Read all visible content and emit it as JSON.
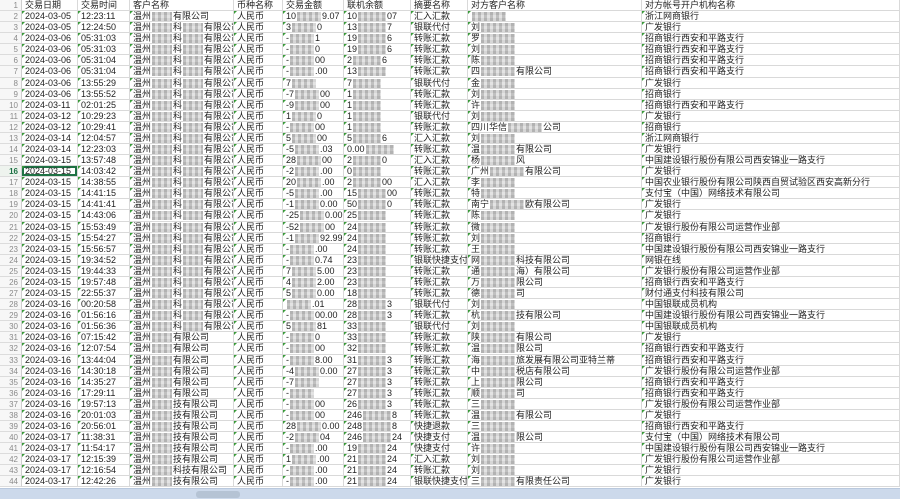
{
  "sheet": {
    "columns": [
      "交易日期",
      "交易时间",
      "客户名称",
      "币种名称",
      "交易金额",
      "联机余额",
      "摘要名称",
      "对方客户名称",
      "对方帐号开户机构名称"
    ],
    "currency": "人民币",
    "selected_row": 16,
    "redaction_note": "mosaic-redacted segments rendered as gray blocks",
    "rows": [
      {
        "n": 2,
        "date": "2024-03-05",
        "time": "12:23:11",
        "customer": [
          "温州",
          "有限公司"
        ],
        "currency": "人民币",
        "amount": [
          "10",
          "9.07"
        ],
        "balance": [
          "10",
          "07"
        ],
        "summary": "汇入汇款",
        "counterparty": [
          "",
          ""
        ],
        "institution": "浙江网商银行"
      },
      {
        "n": 3,
        "date": "2024-03-05",
        "time": "12:24:50",
        "customer": [
          "温州",
          "科",
          "有限公司"
        ],
        "currency": "人民币",
        "amount": [
          "3",
          "0"
        ],
        "balance": [
          "13",
          "7"
        ],
        "summary": "银联代付",
        "counterparty": [
          "刘",
          ""
        ],
        "institution": "广发银行"
      },
      {
        "n": 4,
        "date": "2024-03-06",
        "time": "05:31:03",
        "customer": [
          "温州",
          "科",
          "有限公司"
        ],
        "currency": "人民币",
        "amount": [
          "-",
          "1"
        ],
        "balance": [
          "19",
          "6"
        ],
        "summary": "转账汇款",
        "counterparty": [
          "罗",
          ""
        ],
        "institution": "招商银行西安和平路支行"
      },
      {
        "n": 5,
        "date": "2024-03-06",
        "time": "05:31:03",
        "customer": [
          "温州",
          "科",
          "有限公司"
        ],
        "currency": "人民币",
        "amount": [
          "-",
          "0"
        ],
        "balance": [
          "19",
          "6"
        ],
        "summary": "转账汇款",
        "counterparty": [
          "刘",
          ""
        ],
        "institution": "招商银行西安和平路支行"
      },
      {
        "n": 6,
        "date": "2024-03-06",
        "time": "05:31:04",
        "customer": [
          "温州",
          "科",
          "有限公司"
        ],
        "currency": "人民币",
        "amount": [
          "-",
          "00"
        ],
        "balance": [
          "2",
          "6"
        ],
        "summary": "转账汇款",
        "counterparty": [
          "陈",
          ""
        ],
        "institution": "招商银行西安和平路支行"
      },
      {
        "n": 7,
        "date": "2024-03-06",
        "time": "05:31:04",
        "customer": [
          "温州",
          "科",
          "有限公司"
        ],
        "currency": "人民币",
        "amount": [
          "-",
          ".00"
        ],
        "balance": [
          "13",
          ""
        ],
        "summary": "转账汇款",
        "counterparty": [
          "四",
          "有限公司"
        ],
        "institution": "招商银行西安和平路支行"
      },
      {
        "n": 8,
        "date": "2024-03-06",
        "time": "13:55:29",
        "customer": [
          "温州",
          "科",
          "有限公司"
        ],
        "currency": "人民币",
        "amount": [
          "7",
          ""
        ],
        "balance": [
          "7",
          ""
        ],
        "summary": "银联代付",
        "counterparty": [
          "金",
          ""
        ],
        "institution": "广发银行"
      },
      {
        "n": 9,
        "date": "2024-03-06",
        "time": "13:55:52",
        "customer": [
          "温州",
          "科",
          "有限公司"
        ],
        "currency": "人民币",
        "amount": [
          "-7",
          "00"
        ],
        "balance": [
          "1",
          ""
        ],
        "summary": "转账汇款",
        "counterparty": [
          "刘",
          ""
        ],
        "institution": "招商银行"
      },
      {
        "n": 10,
        "date": "2024-03-11",
        "time": "02:01:25",
        "customer": [
          "温州",
          "科",
          "有限公司"
        ],
        "currency": "人民币",
        "amount": [
          "-9",
          "00"
        ],
        "balance": [
          "1",
          ""
        ],
        "summary": "转账汇款",
        "counterparty": [
          "许",
          ""
        ],
        "institution": "招商银行西安和平路支行"
      },
      {
        "n": 11,
        "date": "2024-03-12",
        "time": "10:29:23",
        "customer": [
          "温州",
          "科",
          "有限公司"
        ],
        "currency": "人民币",
        "amount": [
          "1",
          "0"
        ],
        "balance": [
          "1",
          ""
        ],
        "summary": "银联代付",
        "counterparty": [
          "刘",
          ""
        ],
        "institution": "广发银行"
      },
      {
        "n": 12,
        "date": "2024-03-12",
        "time": "10:29:41",
        "customer": [
          "温州",
          "科",
          "有限公司"
        ],
        "currency": "人民币",
        "amount": [
          "-",
          "00"
        ],
        "balance": [
          "1",
          ""
        ],
        "summary": "转账汇款",
        "counterparty": [
          "四川华信",
          "公司"
        ],
        "institution": "招商银行"
      },
      {
        "n": 13,
        "date": "2024-03-14",
        "time": "12:04:57",
        "customer": [
          "温州",
          "科",
          "有限公司"
        ],
        "currency": "人民币",
        "amount": [
          "5",
          "00"
        ],
        "balance": [
          "5",
          "6"
        ],
        "summary": "汇入汇款",
        "counterparty": [
          "刘",
          ""
        ],
        "institution": "浙江网商银行"
      },
      {
        "n": 14,
        "date": "2024-03-14",
        "time": "12:23:03",
        "customer": [
          "温州",
          "科",
          "有限公司"
        ],
        "currency": "人民币",
        "amount": [
          "-5",
          ".03"
        ],
        "balance": [
          "0.00",
          ""
        ],
        "summary": "转账汇款",
        "counterparty": [
          "温",
          "有限公司"
        ],
        "institution": "广发银行"
      },
      {
        "n": 15,
        "date": "2024-03-15",
        "time": "13:57:48",
        "customer": [
          "温州",
          "科",
          "有限公司"
        ],
        "currency": "人民币",
        "amount": [
          "28",
          "00"
        ],
        "balance": [
          "2",
          "0"
        ],
        "summary": "汇入汇款",
        "counterparty": [
          "杨",
          "风"
        ],
        "institution": "中国建设银行股份有限公司西安锦业一路支行"
      },
      {
        "n": 16,
        "date": "2024-03-15",
        "time": "14:03:42",
        "customer": [
          "温州",
          "科",
          "有限公司"
        ],
        "currency": "人民币",
        "amount": [
          "-2",
          ".00"
        ],
        "balance": [
          "0",
          ""
        ],
        "summary": "转账汇款",
        "counterparty": [
          "广州",
          "有限公司"
        ],
        "institution": "广发银行"
      },
      {
        "n": 17,
        "date": "2024-03-15",
        "time": "14:38:55",
        "customer": [
          "温州",
          "科",
          "有限公司"
        ],
        "currency": "人民币",
        "amount": [
          "20",
          ".00"
        ],
        "balance": [
          "2",
          "00"
        ],
        "summary": "汇入汇款",
        "counterparty": [
          "李",
          ""
        ],
        "institution": "中国农业银行股份有限公司陕西自贸试验区西安高新分行"
      },
      {
        "n": 18,
        "date": "2024-03-15",
        "time": "14:41:15",
        "customer": [
          "温州",
          "科",
          "有限公司"
        ],
        "currency": "人民币",
        "amount": [
          "-5",
          ".00"
        ],
        "balance": [
          "15",
          "00"
        ],
        "summary": "转账汇款",
        "counterparty": [
          "特",
          ""
        ],
        "institution": "支付宝（中国）网络技术有限公司"
      },
      {
        "n": 19,
        "date": "2024-03-15",
        "time": "14:41:41",
        "customer": [
          "温州",
          "科",
          "有限公司"
        ],
        "currency": "人民币",
        "amount": [
          "-1",
          "0.00"
        ],
        "balance": [
          "50",
          "0"
        ],
        "summary": "转账汇款",
        "counterparty": [
          "南宁",
          "欧有限公司"
        ],
        "institution": "广发银行"
      },
      {
        "n": 20,
        "date": "2024-03-15",
        "time": "14:43:06",
        "customer": [
          "温州",
          "科",
          "有限公司"
        ],
        "currency": "人民币",
        "amount": [
          "-25",
          "0.00"
        ],
        "balance": [
          "25",
          ""
        ],
        "summary": "转账汇款",
        "counterparty": [
          "陈",
          ""
        ],
        "institution": "广发银行"
      },
      {
        "n": 21,
        "date": "2024-03-15",
        "time": "15:53:49",
        "customer": [
          "温州",
          "科",
          "有限公司"
        ],
        "currency": "人民币",
        "amount": [
          "-52",
          "00"
        ],
        "balance": [
          "24",
          ""
        ],
        "summary": "转账汇款",
        "counterparty": [
          "微",
          ""
        ],
        "institution": "广发银行股份有限公司运营作业部"
      },
      {
        "n": 22,
        "date": "2024-03-15",
        "time": "15:54:27",
        "customer": [
          "温州",
          "科",
          "有限公司"
        ],
        "currency": "人民币",
        "amount": [
          "-1",
          "92.99"
        ],
        "balance": [
          "24",
          ""
        ],
        "summary": "转账汇款",
        "counterparty": [
          "刘",
          ""
        ],
        "institution": "招商银行"
      },
      {
        "n": 23,
        "date": "2024-03-15",
        "time": "15:56:57",
        "customer": [
          "温州",
          "科",
          "有限公司"
        ],
        "currency": "人民币",
        "amount": [
          "-",
          ".00"
        ],
        "balance": [
          "24",
          ""
        ],
        "summary": "转账汇款",
        "counterparty": [
          "王",
          ""
        ],
        "institution": "中国建设银行股份有限公司西安锦业一路支行"
      },
      {
        "n": 24,
        "date": "2024-03-15",
        "time": "19:34:52",
        "customer": [
          "温州",
          "科",
          "有限公司"
        ],
        "currency": "人民币",
        "amount": [
          "-",
          "0.74"
        ],
        "balance": [
          "23",
          ""
        ],
        "summary": "银联快捷支付",
        "counterparty": [
          "网",
          "科技有限公司"
        ],
        "institution": "网银在线"
      },
      {
        "n": 25,
        "date": "2024-03-15",
        "time": "19:44:33",
        "customer": [
          "温州",
          "科",
          "有限公司"
        ],
        "currency": "人民币",
        "amount": [
          "7",
          "5.00"
        ],
        "balance": [
          "23",
          ""
        ],
        "summary": "转账汇款",
        "counterparty": [
          "通",
          "海）有限公司"
        ],
        "institution": "广发银行股份有限公司运营作业部"
      },
      {
        "n": 26,
        "date": "2024-03-15",
        "time": "19:57:48",
        "customer": [
          "温州",
          "科",
          "有限公司"
        ],
        "currency": "人民币",
        "amount": [
          "4",
          "2.00"
        ],
        "balance": [
          "23",
          ""
        ],
        "summary": "转账汇款",
        "counterparty": [
          "万",
          "限公司"
        ],
        "institution": "招商银行西安和平路支行"
      },
      {
        "n": 27,
        "date": "2024-03-15",
        "time": "22:55:37",
        "customer": [
          "温州",
          "科",
          "有限公司"
        ],
        "currency": "人民币",
        "amount": [
          "5",
          "0.00"
        ],
        "balance": [
          "18",
          ""
        ],
        "summary": "转账汇款",
        "counterparty": [
          "德",
          "司"
        ],
        "institution": "财付通支付科技有限公司"
      },
      {
        "n": 28,
        "date": "2024-03-16",
        "time": "00:20:58",
        "customer": [
          "温州",
          "科",
          "有限公司"
        ],
        "currency": "人民币",
        "amount": [
          "",
          ".01"
        ],
        "balance": [
          "28",
          "3"
        ],
        "summary": "银联代付",
        "counterparty": [
          "刘",
          ""
        ],
        "institution": "中国银联成员机构"
      },
      {
        "n": 29,
        "date": "2024-03-16",
        "time": "01:56:16",
        "customer": [
          "温州",
          "科",
          "有限公司"
        ],
        "currency": "人民币",
        "amount": [
          "-",
          "00.00"
        ],
        "balance": [
          "28",
          "3"
        ],
        "summary": "转账汇款",
        "counterparty": [
          "杭",
          "技有限公司"
        ],
        "institution": "中国建设银行股份有限公司西安锦业一路支行"
      },
      {
        "n": 30,
        "date": "2024-03-16",
        "time": "01:56:36",
        "customer": [
          "温州",
          "科",
          "有限公司"
        ],
        "currency": "人民币",
        "amount": [
          "5",
          "81"
        ],
        "balance": [
          "33",
          ""
        ],
        "summary": "银联代付",
        "counterparty": [
          "刘",
          ""
        ],
        "institution": "中国银联成员机构"
      },
      {
        "n": 31,
        "date": "2024-03-16",
        "time": "07:15:42",
        "customer": [
          "温州",
          "有限公司"
        ],
        "currency": "人民币",
        "amount": [
          "-",
          "0"
        ],
        "balance": [
          "33",
          ""
        ],
        "summary": "转账汇款",
        "counterparty": [
          "陕",
          "有限公司"
        ],
        "institution": "广发银行"
      },
      {
        "n": 32,
        "date": "2024-03-16",
        "time": "12:07:54",
        "customer": [
          "温州",
          "有限公司"
        ],
        "currency": "人民币",
        "amount": [
          "-",
          "00"
        ],
        "balance": [
          "32",
          ""
        ],
        "summary": "转账汇款",
        "counterparty": [
          "温",
          "限公司"
        ],
        "institution": "招商银行西安和平路支行"
      },
      {
        "n": 33,
        "date": "2024-03-16",
        "time": "13:44:04",
        "customer": [
          "温州",
          "有限公司"
        ],
        "currency": "人民币",
        "amount": [
          "-",
          "8.00"
        ],
        "balance": [
          "31",
          "3"
        ],
        "summary": "转账汇款",
        "counterparty": [
          "海",
          "旅发展有限公司亚特兰蒂"
        ],
        "institution": "招商银行西安和平路支行"
      },
      {
        "n": 34,
        "date": "2024-03-16",
        "time": "14:30:18",
        "customer": [
          "温州",
          "有限公司"
        ],
        "currency": "人民币",
        "amount": [
          "-4",
          "0.00"
        ],
        "balance": [
          "27",
          "3"
        ],
        "summary": "转账汇款",
        "counterparty": [
          "中",
          "税店有限公司"
        ],
        "institution": "广发银行股份有限公司运营作业部"
      },
      {
        "n": 35,
        "date": "2024-03-16",
        "time": "14:35:27",
        "customer": [
          "温州",
          "有限公司"
        ],
        "currency": "人民币",
        "amount": [
          "-7",
          ""
        ],
        "balance": [
          "27",
          "3"
        ],
        "summary": "转账汇款",
        "counterparty": [
          "上",
          "限公司"
        ],
        "institution": "招商银行西安和平路支行"
      },
      {
        "n": 36,
        "date": "2024-03-16",
        "time": "17:29:11",
        "customer": [
          "温州",
          "有限公司"
        ],
        "currency": "人民币",
        "amount": [
          "-",
          ""
        ],
        "balance": [
          "27",
          "3"
        ],
        "summary": "转账汇款",
        "counterparty": [
          "顺",
          "司"
        ],
        "institution": "招商银行西安和平路支行"
      },
      {
        "n": 37,
        "date": "2024-03-16",
        "time": "19:57:13",
        "customer": [
          "温州",
          "技有限公司"
        ],
        "currency": "人民币",
        "amount": [
          "-",
          "00"
        ],
        "balance": [
          "26",
          "3"
        ],
        "summary": "转账汇款",
        "counterparty": [
          "三",
          ""
        ],
        "institution": "广发银行股份有限公司运营作业部"
      },
      {
        "n": 38,
        "date": "2024-03-16",
        "time": "20:01:03",
        "customer": [
          "温州",
          "技有限公司"
        ],
        "currency": "人民币",
        "amount": [
          "-",
          "00"
        ],
        "balance": [
          "246",
          "8"
        ],
        "summary": "转账汇款",
        "counterparty": [
          "温",
          "有限公司"
        ],
        "institution": "广发银行"
      },
      {
        "n": 39,
        "date": "2024-03-16",
        "time": "20:56:01",
        "customer": [
          "温州",
          "技有限公司"
        ],
        "currency": "人民币",
        "amount": [
          "28",
          "0.00"
        ],
        "balance": [
          "248",
          "8"
        ],
        "summary": "快捷退款",
        "counterparty": [
          "三",
          ""
        ],
        "institution": "招商银行西安和平路支行"
      },
      {
        "n": 40,
        "date": "2024-03-17",
        "time": "11:38:31",
        "customer": [
          "温州",
          "技有限公司"
        ],
        "currency": "人民币",
        "amount": [
          "-2",
          "04"
        ],
        "balance": [
          "246",
          "24"
        ],
        "summary": "快捷支付",
        "counterparty": [
          "温",
          "限公司"
        ],
        "institution": "支付宝（中国）网络技术有限公司"
      },
      {
        "n": 41,
        "date": "2024-03-17",
        "time": "11:54:17",
        "customer": [
          "温州",
          "技有限公司"
        ],
        "currency": "人民币",
        "amount": [
          "-",
          ".00"
        ],
        "balance": [
          "19",
          "24"
        ],
        "summary": "快捷支付",
        "counterparty": [
          "许",
          ""
        ],
        "institution": "中国建设银行股份有限公司西安锦业一路支行"
      },
      {
        "n": 42,
        "date": "2024-03-17",
        "time": "12:15:39",
        "customer": [
          "温州",
          "技有限公司"
        ],
        "currency": "人民币",
        "amount": [
          "1",
          ".00"
        ],
        "balance": [
          "21",
          "24"
        ],
        "summary": "汇入汇款",
        "counterparty": [
          "刘",
          ""
        ],
        "institution": "广发银行股份有限公司运营作业部"
      },
      {
        "n": 43,
        "date": "2024-03-17",
        "time": "12:16:54",
        "customer": [
          "温州",
          "科技有限公司"
        ],
        "currency": "人民币",
        "amount": [
          "-",
          ".00"
        ],
        "balance": [
          "21",
          "24"
        ],
        "summary": "转账汇款",
        "counterparty": [
          "刘",
          ""
        ],
        "institution": "广发银行"
      },
      {
        "n": 44,
        "date": "2024-03-17",
        "time": "12:42:26",
        "customer": [
          "温州",
          "技有限公司"
        ],
        "currency": "人民币",
        "amount": [
          "-",
          ".00"
        ],
        "balance": [
          "21",
          "24"
        ],
        "summary": "银联快捷支付",
        "counterparty": [
          "三",
          "有限责任公司"
        ],
        "institution": "广发银行"
      }
    ]
  },
  "colors": {
    "gridline": "#d9d9d9",
    "text_marker_green": "#3a9b3a",
    "selection_green": "#1f7244",
    "scrollbar_strip": "#ccd9eb"
  }
}
